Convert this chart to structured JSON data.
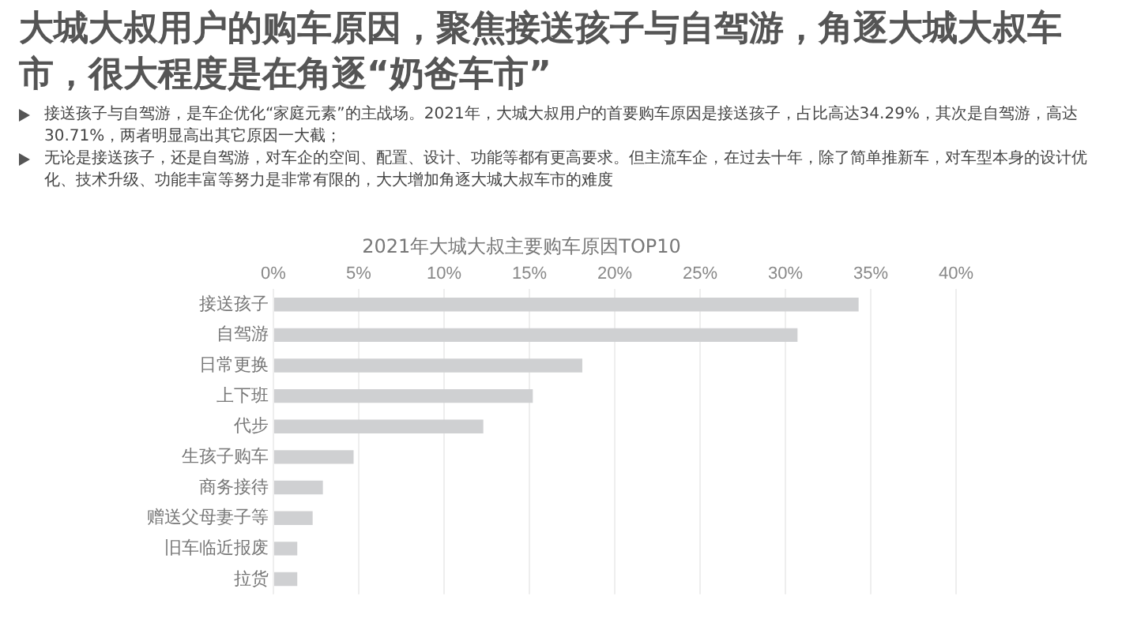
{
  "chart_data": {
    "type": "bar",
    "orientation": "horizontal",
    "title": "大城大叔用户的购车原因，聚焦接送孩子与自驾游，角逐大城大叔车市，很大程度是在角逐“奶爸车市”",
    "subtitle": "2021年大城大叔主要购车原因TOP10",
    "annotations": [
      "接送孩子与自驾游，是车企优化“家庭元素”的主战场。2021年，大城大叔用户的首要购车原因是接送孩子，占比高达34.29%，其次是自驾游，高达30.71%，两者明显高出其它原因一大截；",
      "无论是接送孩子，还是自驾游，对车企的空间、配置、设计、功能等都有更高要求。但主流车企，在过去十年，除了简单推新车，对车型本身的设计优化、技术升级、功能丰富等努力是非常有限的，大大增加角逐大城大叔车市的难度"
    ],
    "categories": [
      "接送孩子",
      "自驾游",
      "日常更换",
      "上下班",
      "代步",
      "生孩子购车",
      "商务接待",
      "赠送父母妻子等",
      "旧车临近报废",
      "拉货"
    ],
    "values": [
      34.29,
      30.71,
      18.1,
      15.2,
      12.3,
      4.7,
      2.9,
      2.3,
      1.4,
      1.4
    ],
    "color": "#cfd0d2",
    "xlim": [
      0,
      40
    ],
    "xticks": [
      {
        "value": 0,
        "label": "0%"
      },
      {
        "value": 5,
        "label": "5%"
      },
      {
        "value": 10,
        "label": "10%"
      },
      {
        "value": 15,
        "label": "15%"
      },
      {
        "value": 20,
        "label": "20%"
      },
      {
        "value": 25,
        "label": "25%"
      },
      {
        "value": 30,
        "label": "30%"
      },
      {
        "value": 35,
        "label": "35%"
      },
      {
        "value": 40,
        "label": "40%"
      }
    ],
    "grid": "x",
    "legend": false
  }
}
